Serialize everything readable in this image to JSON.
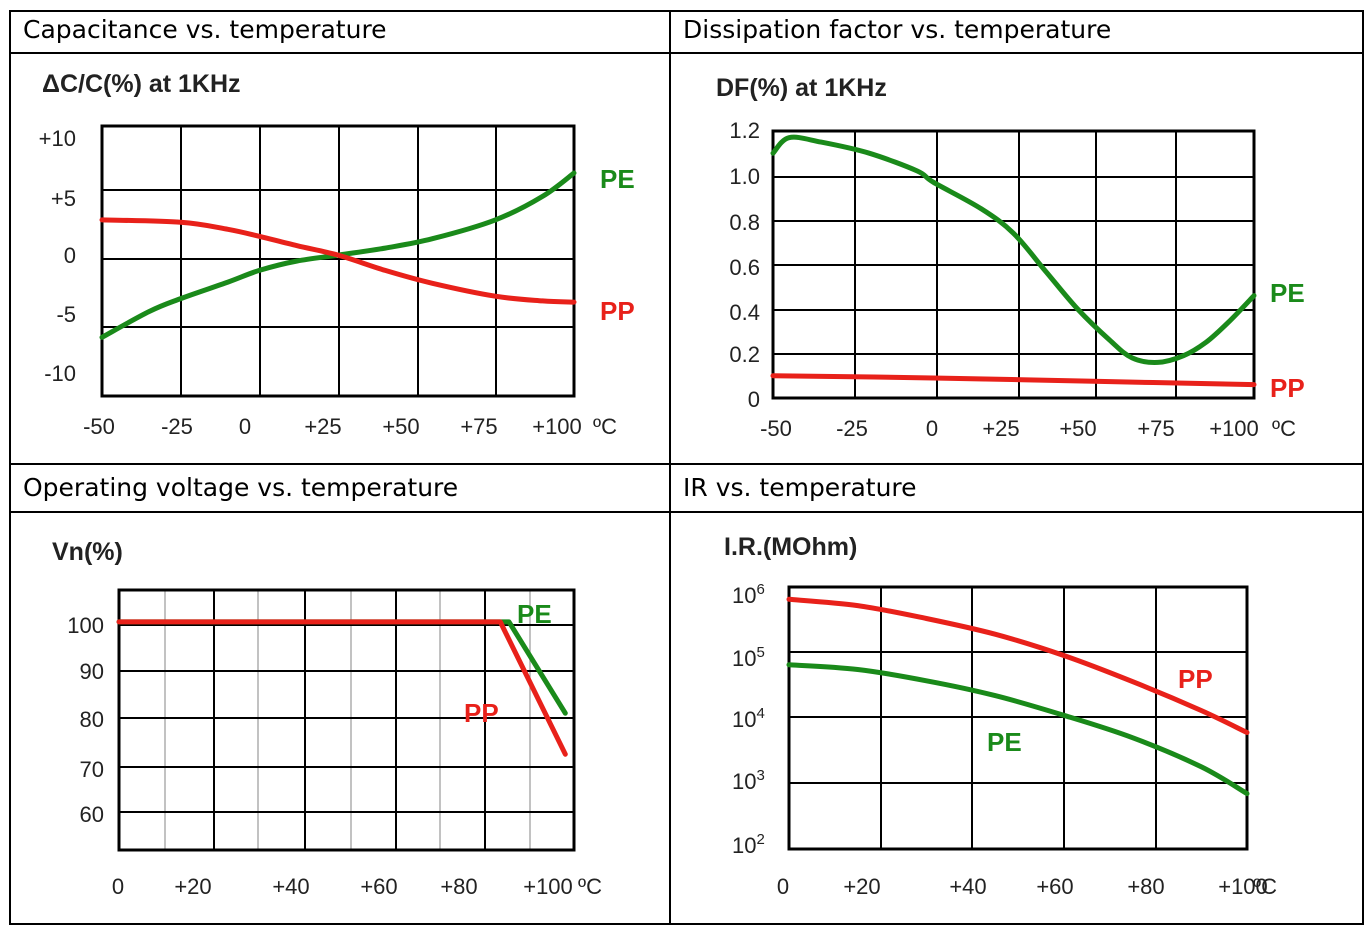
{
  "panels": [
    {
      "caption": "Capacitance vs. temperature"
    },
    {
      "caption": "Dissipation factor vs. temperature"
    },
    {
      "caption": "Operating voltage vs. temperature"
    },
    {
      "caption": "IR vs. temperature"
    }
  ],
  "colors": {
    "PE": "#1a8a1a",
    "PP": "#e8211a",
    "grid": "#000000"
  },
  "chart_data": [
    {
      "type": "line",
      "ylabel": "ΔC/C(%) at 1KHz",
      "xticks": [
        "-50",
        "-25",
        "0",
        "+25",
        "+50",
        "+75",
        "+100"
      ],
      "xunit": "ºC",
      "yticks": [
        "+10",
        "+5",
        "0",
        "-5",
        "-10"
      ],
      "xlim": [
        -50,
        100
      ],
      "ylim": [
        -12,
        11
      ],
      "series": [
        {
          "name": "PE",
          "x": [
            -50,
            -35,
            -25,
            -10,
            0,
            12,
            25,
            40,
            55,
            75,
            90,
            100
          ],
          "y": [
            -7,
            -4.8,
            -3.7,
            -2.3,
            -1.3,
            -0.5,
            0,
            0.6,
            1.4,
            3,
            5,
            7
          ]
        },
        {
          "name": "PP",
          "x": [
            -50,
            -25,
            -10,
            0,
            12,
            25,
            40,
            55,
            75,
            90,
            100
          ],
          "y": [
            3,
            2.8,
            2.2,
            1.6,
            0.8,
            0,
            -1.3,
            -2.4,
            -3.5,
            -3.9,
            -4
          ]
        }
      ]
    },
    {
      "type": "line",
      "ylabel": "DF(%) at 1KHz",
      "xticks": [
        "-50",
        "-25",
        "0",
        "+25",
        "+50",
        "+75",
        "+100"
      ],
      "xunit": "ºC",
      "yticks": [
        "1.2",
        "1.0",
        "0.8",
        "0.6",
        "0.4",
        "0.2",
        "0"
      ],
      "xlim": [
        -50,
        100
      ],
      "ylim": [
        0,
        1.2
      ],
      "series": [
        {
          "name": "PE",
          "x": [
            -50,
            -45,
            -35,
            -20,
            -5,
            0,
            15,
            25,
            35,
            45,
            55,
            62,
            70,
            78,
            85,
            92,
            100
          ],
          "y": [
            1.1,
            1.17,
            1.15,
            1.1,
            1.02,
            0.97,
            0.85,
            0.74,
            0.57,
            0.4,
            0.26,
            0.18,
            0.16,
            0.19,
            0.25,
            0.34,
            0.46
          ]
        },
        {
          "name": "PP",
          "x": [
            -50,
            0,
            50,
            100
          ],
          "y": [
            0.1,
            0.09,
            0.075,
            0.06
          ]
        }
      ]
    },
    {
      "type": "line",
      "ylabel": "Vn(%)",
      "xticks": [
        "0",
        "+20",
        "+40",
        "+60",
        "+80",
        "+100"
      ],
      "xunit": "ºC",
      "yticks": [
        "100",
        "90",
        "80",
        "70",
        "60"
      ],
      "xlim": [
        0,
        105
      ],
      "ylim": [
        50,
        107
      ],
      "series": [
        {
          "name": "PE",
          "x": [
            0,
            88,
            90,
            103
          ],
          "y": [
            100,
            100,
            100,
            80
          ]
        },
        {
          "name": "PP",
          "x": [
            0,
            88,
            103
          ],
          "y": [
            100,
            100,
            71
          ]
        }
      ]
    },
    {
      "type": "line",
      "ylabel": "I.R.(MOhm)",
      "xticks": [
        "0",
        "+20",
        "+40",
        "+60",
        "+80",
        "+100"
      ],
      "xunit": "ºC",
      "ytick_bases": [
        "10",
        "10",
        "10",
        "10",
        "10"
      ],
      "ytick_exponents": [
        "6",
        "5",
        "4",
        "3",
        "2"
      ],
      "yscale": "log",
      "xlim": [
        0,
        100
      ],
      "ylim": [
        100,
        1000000
      ],
      "series": [
        {
          "name": "PP",
          "x": [
            0,
            15,
            30,
            45,
            60,
            75,
            90,
            100
          ],
          "y": [
            650000,
            520000,
            330000,
            190000,
            90000,
            36000,
            13000,
            6000
          ]
        },
        {
          "name": "PE",
          "x": [
            0,
            15,
            30,
            45,
            60,
            75,
            90,
            100
          ],
          "y": [
            65000,
            55000,
            37000,
            22000,
            11000,
            5000,
            1800,
            700
          ]
        }
      ]
    }
  ]
}
